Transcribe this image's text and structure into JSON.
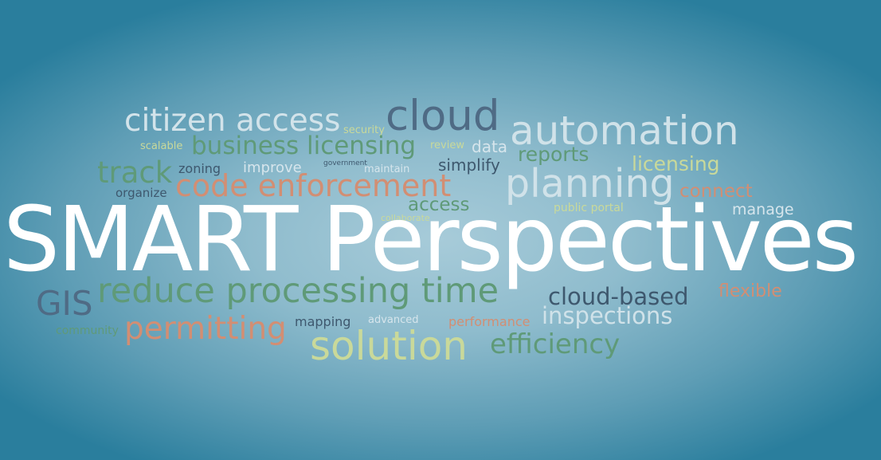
{
  "title": "SMART Perspectives",
  "colors": {
    "background_center": "#a7cbd9",
    "background_edge": "#2a7e9d",
    "title": "#ffffff"
  },
  "words": {
    "citizen_access": "citizen access",
    "security": "security",
    "cloud": "cloud",
    "automation": "automation",
    "scalable": "scalable",
    "business_licensing": "business licensing",
    "review": "review",
    "data": "data",
    "reports": "reports",
    "track": "track",
    "zoning": "zoning",
    "improve": "improve",
    "government": "government",
    "maintain": "maintain",
    "simplify": "simplify",
    "licensing": "licensing",
    "organize": "organize",
    "code_enforcement": "code enforcement",
    "planning": "planning",
    "connect": "connect",
    "access": "access",
    "public_portal": "public portal",
    "manage": "manage",
    "collaborate": "collaborate",
    "gis": "GIS",
    "reduce_processing_time": "reduce processing time",
    "cloud_based": "cloud-based",
    "flexible": "flexible",
    "community": "community",
    "permitting": "permitting",
    "mapping": "mapping",
    "advanced": "advanced",
    "performance": "performance",
    "inspections": "inspections",
    "solution": "solution",
    "efficiency": "efficiency"
  }
}
